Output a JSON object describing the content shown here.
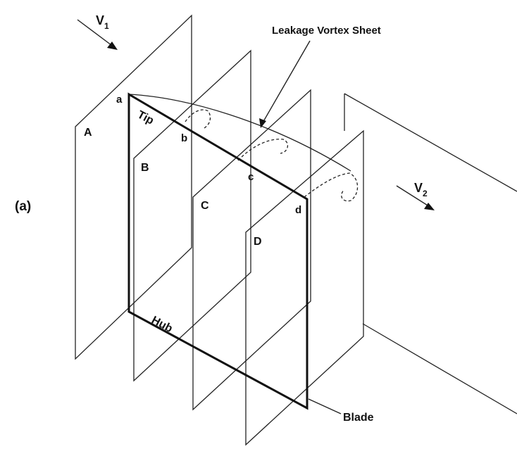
{
  "figure_label": "(a)",
  "title": "Leakage Vortex Sheet",
  "velocity_in": {
    "symbol": "V",
    "subscript": "1"
  },
  "velocity_out": {
    "symbol": "V",
    "subscript": "2"
  },
  "planes": [
    "A",
    "B",
    "C",
    "D"
  ],
  "points": [
    "a",
    "b",
    "c",
    "d"
  ],
  "blade_labels": {
    "tip": "Tip",
    "hub": "Hub",
    "blade": "Blade"
  }
}
